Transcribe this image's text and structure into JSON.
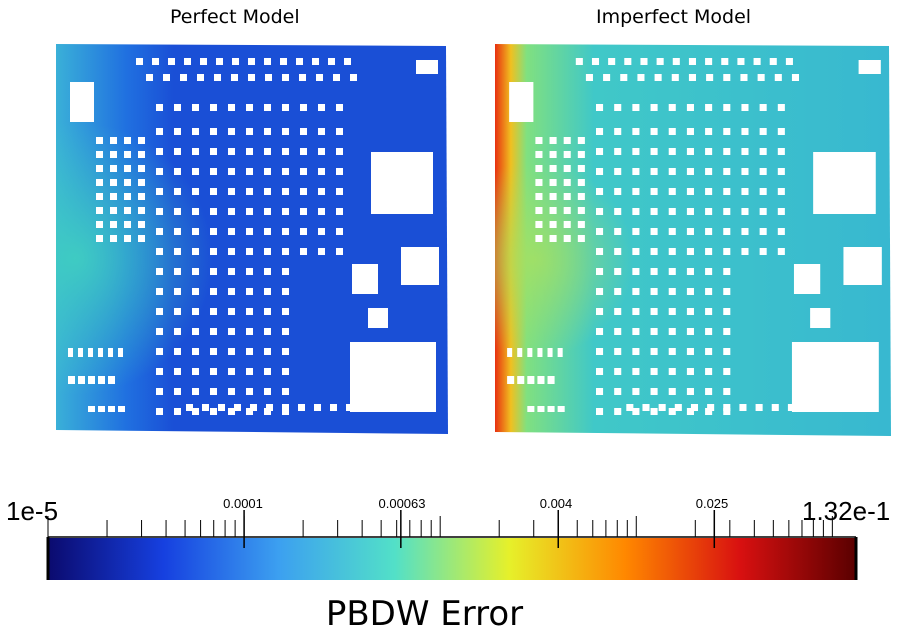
{
  "panels": {
    "left_title": "Perfect Model",
    "right_title": "Imperfect Model"
  },
  "colorbar": {
    "min_label": "1e-5",
    "max_label": "1.32e-1",
    "tick_labels": [
      "0.0001",
      "0.00063",
      "0.004",
      "0.025"
    ],
    "scale": "log",
    "colormap": [
      "#0b0a6e",
      "#1640e0",
      "#3ca0f0",
      "#52e0c8",
      "#e6f02a",
      "#ff8800",
      "#d81010",
      "#5a0000"
    ]
  },
  "caption": "PBDW Error"
}
